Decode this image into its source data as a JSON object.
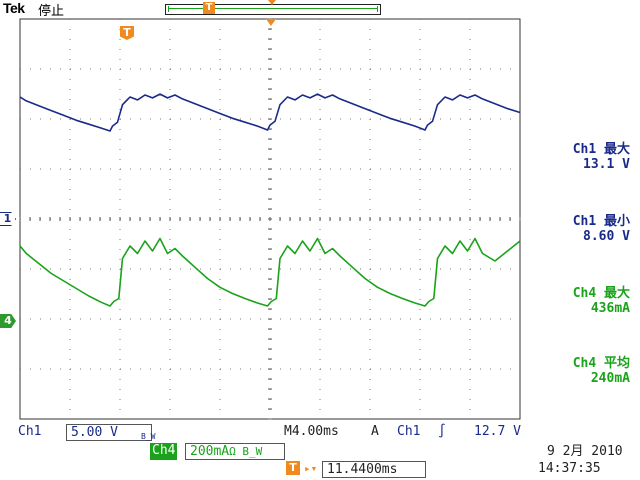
{
  "header": {
    "brand": "Tek",
    "run_state": "停止",
    "trigger_position_marker": "T"
  },
  "channel_markers": {
    "ch1": "1",
    "ch4": "4"
  },
  "measurements": [
    {
      "label": "Ch1 最大",
      "value": "13.1 V",
      "channel": "ch1"
    },
    {
      "label": "Ch1 最小",
      "value": "8.60 V",
      "channel": "ch1"
    },
    {
      "label": "Ch4 最大",
      "value": "436mA",
      "channel": "ch4"
    },
    {
      "label": "Ch4 平均",
      "value": "240mA",
      "channel": "ch4"
    }
  ],
  "status": {
    "ch1_label": "Ch1",
    "ch1_scale": "5.00 V",
    "ch1_bw": "B_W",
    "time_scale": "M4.00ms",
    "acq_mode": "A",
    "trigger_channel": "Ch1",
    "trigger_slope": "∫",
    "trigger_level": "12.7 V",
    "ch4_label": "Ch4",
    "ch4_scale": "200mA",
    "ch4_suffix": "Ω B_W",
    "delay_icon": "T",
    "delay_arrow": "▸▾",
    "delay_value": "11.4400ms",
    "date": "9 2月  2010",
    "time": "14:37:35"
  },
  "colors": {
    "ch1": "#1a2a8a",
    "ch4": "#1aa31a",
    "trigger": "#f08a1e"
  },
  "chart_data": {
    "type": "line",
    "x_units": "ms",
    "x_range": [
      0,
      40
    ],
    "series": [
      {
        "name": "Ch1",
        "units": "V",
        "values": [
          [
            0,
            12.4
          ],
          [
            0.5,
            12.0
          ],
          [
            1.5,
            11.5
          ],
          [
            2.5,
            11.0
          ],
          [
            3.5,
            10.5
          ],
          [
            4.5,
            10.0
          ],
          [
            5.5,
            9.6
          ],
          [
            6.5,
            9.2
          ],
          [
            7.2,
            8.9
          ],
          [
            7.4,
            9.4
          ],
          [
            7.8,
            9.8
          ],
          [
            8.2,
            11.6
          ],
          [
            8.8,
            12.4
          ],
          [
            9.4,
            12.1
          ],
          [
            10.0,
            12.6
          ],
          [
            10.6,
            12.3
          ],
          [
            11.2,
            12.7
          ],
          [
            11.8,
            12.3
          ],
          [
            12.4,
            12.6
          ],
          [
            13.0,
            12.2
          ],
          [
            14.0,
            11.7
          ],
          [
            15.0,
            11.2
          ],
          [
            16.0,
            10.7
          ],
          [
            17.0,
            10.2
          ],
          [
            18.0,
            9.8
          ],
          [
            19.0,
            9.4
          ],
          [
            19.8,
            9.0
          ],
          [
            20.0,
            9.5
          ],
          [
            20.4,
            9.9
          ],
          [
            20.8,
            11.6
          ],
          [
            21.4,
            12.4
          ],
          [
            22.0,
            12.1
          ],
          [
            22.6,
            12.6
          ],
          [
            23.2,
            12.3
          ],
          [
            23.8,
            12.7
          ],
          [
            24.4,
            12.3
          ],
          [
            25.0,
            12.6
          ],
          [
            25.6,
            12.2
          ],
          [
            26.6,
            11.7
          ],
          [
            27.6,
            11.2
          ],
          [
            28.6,
            10.7
          ],
          [
            29.6,
            10.2
          ],
          [
            30.6,
            9.8
          ],
          [
            31.6,
            9.4
          ],
          [
            32.4,
            9.0
          ],
          [
            32.6,
            9.5
          ],
          [
            33.0,
            9.9
          ],
          [
            33.4,
            11.6
          ],
          [
            34.0,
            12.4
          ],
          [
            34.6,
            12.1
          ],
          [
            35.2,
            12.6
          ],
          [
            35.8,
            12.3
          ],
          [
            36.4,
            12.6
          ],
          [
            37.0,
            12.2
          ],
          [
            38.0,
            11.7
          ],
          [
            39.0,
            11.2
          ],
          [
            40.0,
            10.8
          ]
        ]
      },
      {
        "name": "Ch4",
        "units": "mA",
        "values": [
          [
            0,
            300
          ],
          [
            0.5,
            270
          ],
          [
            1.5,
            230
          ],
          [
            2.5,
            190
          ],
          [
            3.5,
            160
          ],
          [
            4.5,
            130
          ],
          [
            5.5,
            100
          ],
          [
            6.5,
            75
          ],
          [
            7.2,
            60
          ],
          [
            7.5,
            78
          ],
          [
            7.9,
            90
          ],
          [
            8.2,
            250
          ],
          [
            8.8,
            300
          ],
          [
            9.4,
            270
          ],
          [
            10.0,
            320
          ],
          [
            10.6,
            280
          ],
          [
            11.2,
            330
          ],
          [
            11.8,
            270
          ],
          [
            12.4,
            290
          ],
          [
            13.0,
            260
          ],
          [
            14.0,
            215
          ],
          [
            15.0,
            170
          ],
          [
            16.0,
            135
          ],
          [
            17.0,
            110
          ],
          [
            18.0,
            90
          ],
          [
            19.0,
            72
          ],
          [
            19.8,
            60
          ],
          [
            20.1,
            78
          ],
          [
            20.5,
            90
          ],
          [
            20.8,
            250
          ],
          [
            21.4,
            300
          ],
          [
            22.0,
            270
          ],
          [
            22.6,
            320
          ],
          [
            23.2,
            280
          ],
          [
            23.8,
            330
          ],
          [
            24.4,
            270
          ],
          [
            25.0,
            290
          ],
          [
            25.6,
            260
          ],
          [
            26.6,
            215
          ],
          [
            27.6,
            170
          ],
          [
            28.6,
            135
          ],
          [
            29.6,
            110
          ],
          [
            30.6,
            90
          ],
          [
            31.6,
            72
          ],
          [
            32.4,
            60
          ],
          [
            32.7,
            78
          ],
          [
            33.1,
            90
          ],
          [
            33.4,
            250
          ],
          [
            34.0,
            300
          ],
          [
            34.6,
            270
          ],
          [
            35.2,
            320
          ],
          [
            35.8,
            280
          ],
          [
            36.4,
            330
          ],
          [
            37.0,
            270
          ],
          [
            38.0,
            240
          ],
          [
            39.0,
            280
          ],
          [
            40.0,
            320
          ]
        ]
      }
    ],
    "grid": true
  }
}
